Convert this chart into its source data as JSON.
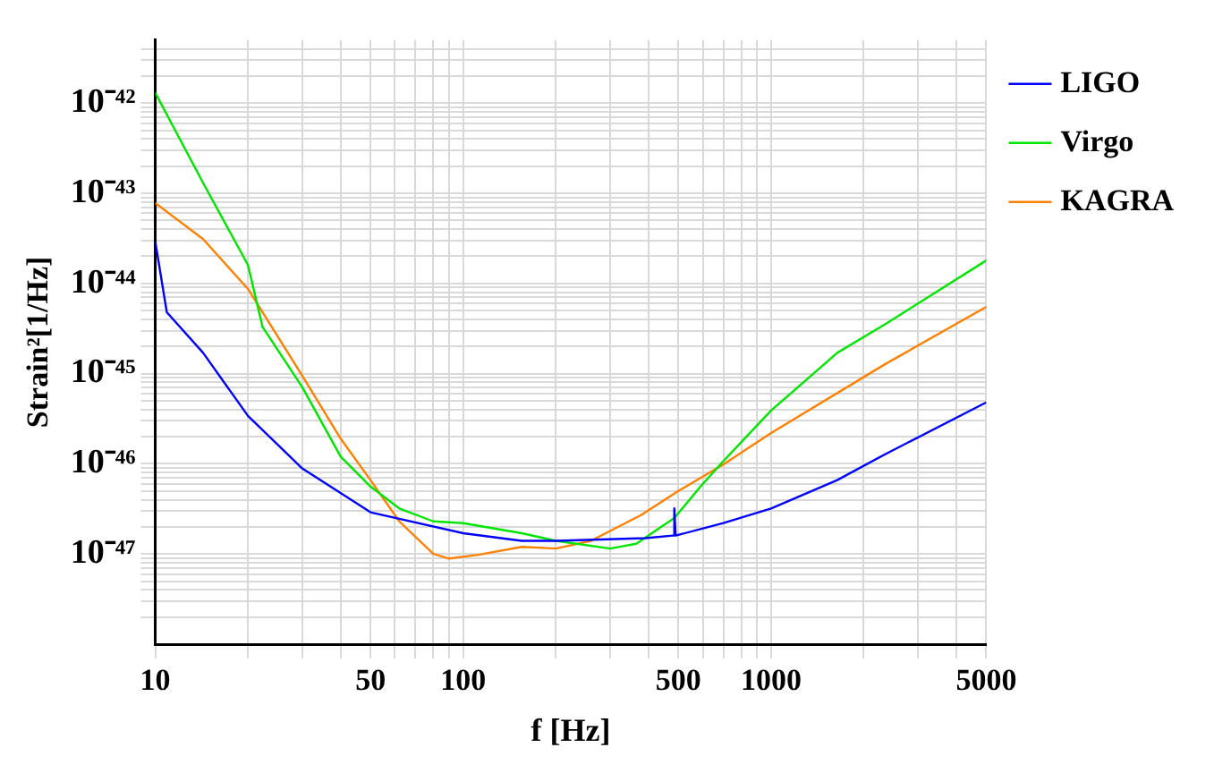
{
  "chart_data": {
    "type": "line",
    "xlabel": "f [Hz]",
    "ylabel": "Strain²[1/Hz]",
    "log": "xy",
    "grid": true,
    "legend": "top right",
    "marker": "none",
    "line_style": "solid",
    "xlim": [
      10,
      5000
    ],
    "ylim": [
      1e-48,
      5e-42
    ],
    "xticks": [
      10,
      {
        "value": 20,
        "label": null
      },
      {
        "value": 30,
        "label": null
      },
      {
        "value": 40,
        "label": null
      },
      50,
      {
        "value": 60,
        "label": null
      },
      {
        "value": 70,
        "label": null
      },
      {
        "value": 80,
        "label": null
      },
      {
        "value": 90,
        "label": null
      },
      100,
      {
        "value": 200,
        "label": null
      },
      {
        "value": 300,
        "label": null
      },
      {
        "value": 400,
        "label": null
      },
      500,
      {
        "value": 600,
        "label": null
      },
      {
        "value": 700,
        "label": null
      },
      {
        "value": 800,
        "label": null
      },
      {
        "value": 900,
        "label": null
      },
      1000,
      {
        "value": 2000,
        "label": null
      },
      {
        "value": 3000,
        "label": null
      },
      {
        "value": 4000,
        "label": null
      },
      5000
    ],
    "yticks": [
      {
        "value": 2e-48,
        "label": null
      },
      {
        "value": 3e-48,
        "label": null
      },
      {
        "value": 4e-48,
        "label": null
      },
      {
        "value": 5e-48,
        "label": null
      },
      {
        "value": 6e-48,
        "label": null
      },
      {
        "value": 7e-48,
        "label": null
      },
      {
        "value": 8e-48,
        "label": null
      },
      {
        "value": 9e-48,
        "label": null
      },
      {
        "value": 1e-47,
        "label": "10⁻⁴⁷"
      },
      {
        "value": 2e-47,
        "label": null
      },
      {
        "value": 3e-47,
        "label": null
      },
      {
        "value": 4e-47,
        "label": null
      },
      {
        "value": 5e-47,
        "label": null
      },
      {
        "value": 6e-47,
        "label": null
      },
      {
        "value": 7e-47,
        "label": null
      },
      {
        "value": 8e-47,
        "label": null
      },
      {
        "value": 9e-47,
        "label": null
      },
      {
        "value": 1e-46,
        "label": "10⁻⁴⁶"
      },
      {
        "value": 2e-46,
        "label": null
      },
      {
        "value": 3e-46,
        "label": null
      },
      {
        "value": 4e-46,
        "label": null
      },
      {
        "value": 5e-46,
        "label": null
      },
      {
        "value": 6e-46,
        "label": null
      },
      {
        "value": 7e-46,
        "label": null
      },
      {
        "value": 8e-46,
        "label": null
      },
      {
        "value": 9e-46,
        "label": null
      },
      {
        "value": 1e-45,
        "label": "10⁻⁴⁵"
      },
      {
        "value": 2e-45,
        "label": null
      },
      {
        "value": 3e-45,
        "label": null
      },
      {
        "value": 4e-45,
        "label": null
      },
      {
        "value": 5e-45,
        "label": null
      },
      {
        "value": 6e-45,
        "label": null
      },
      {
        "value": 7e-45,
        "label": null
      },
      {
        "value": 8e-45,
        "label": null
      },
      {
        "value": 9e-45,
        "label": null
      },
      {
        "value": 1e-44,
        "label": "10⁻⁴⁴"
      },
      {
        "value": 2e-44,
        "label": null
      },
      {
        "value": 3e-44,
        "label": null
      },
      {
        "value": 4e-44,
        "label": null
      },
      {
        "value": 5e-44,
        "label": null
      },
      {
        "value": 6e-44,
        "label": null
      },
      {
        "value": 7e-44,
        "label": null
      },
      {
        "value": 8e-44,
        "label": null
      },
      {
        "value": 9e-44,
        "label": null
      },
      {
        "value": 1e-43,
        "label": "10⁻⁴³"
      },
      {
        "value": 2e-43,
        "label": null
      },
      {
        "value": 3e-43,
        "label": null
      },
      {
        "value": 4e-43,
        "label": null
      },
      {
        "value": 5e-43,
        "label": null
      },
      {
        "value": 6e-43,
        "label": null
      },
      {
        "value": 7e-43,
        "label": null
      },
      {
        "value": 8e-43,
        "label": null
      },
      {
        "value": 9e-43,
        "label": null
      },
      {
        "value": 1e-42,
        "label": "10⁻⁴²"
      },
      {
        "value": 2e-42,
        "label": null
      },
      {
        "value": 3e-42,
        "label": null
      },
      {
        "value": 4e-42,
        "label": null
      }
    ],
    "series": [
      {
        "name": "LIGO",
        "color": "#0000ff",
        "x": [
          10,
          10.9,
          14.3,
          20,
          30,
          50,
          100,
          155,
          200,
          390,
          480,
          485,
          490,
          700,
          1000,
          1640,
          2370,
          5000
        ],
        "values": [
          2.9e-44,
          4.8e-45,
          1.7e-45,
          3.4e-46,
          8.9e-47,
          2.9e-47,
          1.7e-47,
          1.4e-47,
          1.4e-47,
          1.5e-47,
          1.6e-47,
          3.2e-47,
          1.6e-47,
          2.2e-47,
          3.2e-47,
          6.6e-47,
          1.3e-46,
          4.8e-46
        ]
      },
      {
        "name": "Virgo",
        "color": "#00e600",
        "x": [
          10,
          14.3,
          20,
          22.3,
          30,
          40,
          50,
          62,
          80,
          100,
          155,
          200,
          300,
          365,
          485,
          590,
          705,
          1000,
          1640,
          2370,
          5000
        ],
        "values": [
          1.3e-42,
          1.3e-43,
          1.6e-44,
          3.3e-45,
          7.1e-46,
          1.2e-46,
          5.6e-47,
          3.2e-47,
          2.3e-47,
          2.2e-47,
          1.7e-47,
          1.4e-47,
          1.15e-47,
          1.3e-47,
          2.5e-47,
          5.6e-47,
          1.1e-46,
          3.9e-46,
          1.7e-45,
          3.6e-45,
          1.8e-44
        ]
      },
      {
        "name": "KAGRA",
        "color": "#ff8000",
        "x": [
          10,
          14.3,
          20,
          30,
          40,
          50,
          62,
          80,
          90,
          112,
          155,
          200,
          260,
          378,
          500,
          705,
          1000,
          2370,
          5000
        ],
        "values": [
          7.8e-44,
          3.1e-44,
          8.7e-45,
          9.5e-46,
          1.9e-46,
          6.6e-47,
          2.3e-47,
          1e-47,
          8.9e-48,
          9.8e-48,
          1.2e-47,
          1.15e-47,
          1.4e-47,
          2.7e-47,
          5e-47,
          1e-46,
          2.2e-46,
          1.3e-45,
          5.5e-45
        ]
      }
    ]
  }
}
